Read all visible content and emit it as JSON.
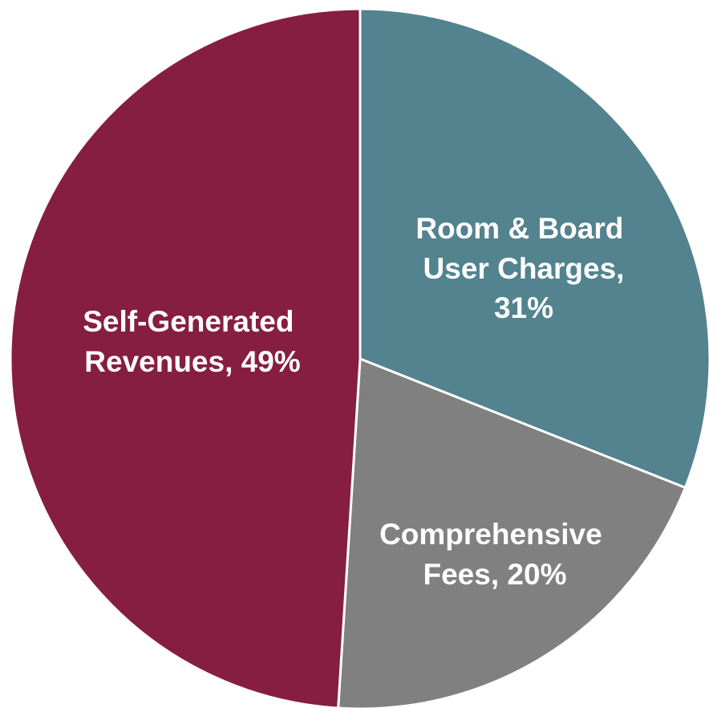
{
  "chart_data": {
    "type": "pie",
    "categories": [
      "Room & Board User Charges",
      "Comprehensive Fees",
      "Self-Generated Revenues"
    ],
    "values": [
      31,
      20,
      49
    ],
    "value_labels": [
      "31%",
      "20%",
      "49%"
    ],
    "label_separator": ",",
    "colors": [
      "#52838e",
      "#808080",
      "#861e41"
    ]
  }
}
